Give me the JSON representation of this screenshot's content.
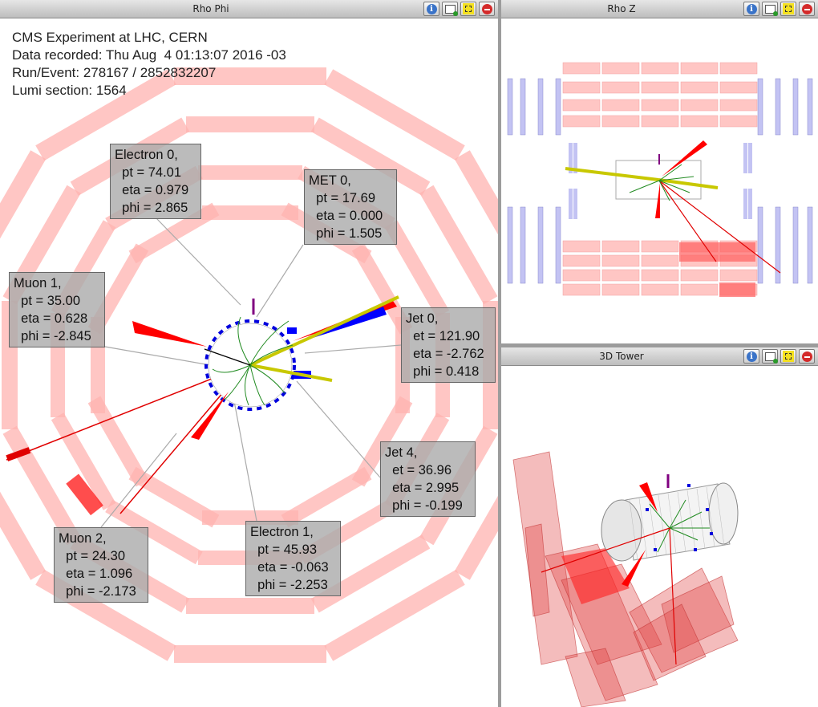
{
  "panels": {
    "rhophi": {
      "title": "Rho Phi"
    },
    "rhoz": {
      "title": "Rho Z"
    },
    "tower": {
      "title": "3D Tower"
    }
  },
  "event_info": {
    "line1": "CMS Experiment at LHC, CERN",
    "line2": "Data recorded: Thu Aug  4 01:13:07 2016 -03",
    "line3": "Run/Event: 278167 / 2852832207",
    "line4": "Lumi section: 1564"
  },
  "labels": [
    {
      "id": "electron0",
      "lines": [
        "Electron 0,",
        "  pt = 74.01",
        "  eta = 0.979",
        "  phi = 2.865"
      ]
    },
    {
      "id": "met0",
      "lines": [
        "MET 0,",
        "  pt = 17.69",
        "  eta = 0.000",
        "  phi = 1.505"
      ]
    },
    {
      "id": "muon1",
      "lines": [
        "Muon 1,",
        "  pt = 35.00",
        "  eta = 0.628",
        "  phi = -2.845"
      ]
    },
    {
      "id": "jet0",
      "lines": [
        "Jet 0,",
        "  et = 121.90",
        "  eta = -2.762",
        "  phi = 0.418"
      ]
    },
    {
      "id": "jet4",
      "lines": [
        "Jet 4,",
        "  et = 36.96",
        "  eta = 2.995",
        "  phi = -0.199"
      ]
    },
    {
      "id": "muon2",
      "lines": [
        "Muon 2,",
        "  pt = 24.30",
        "  eta = 1.096",
        "  phi = -2.173"
      ]
    },
    {
      "id": "electron1",
      "lines": [
        "Electron 1,",
        "  pt = 45.93",
        "  eta = -0.063",
        "  phi = -2.253"
      ]
    }
  ],
  "icons": [
    "info-icon",
    "snapshot-icon",
    "maximize-icon",
    "close-icon"
  ],
  "colors": {
    "muon_chamber": "#ffb3b0",
    "calo_em": "#ff0000",
    "calo_had": "#0000ff",
    "jet": "#c8c800",
    "track": "#228b22",
    "dt_blue": "#b4b4f0",
    "met": "#800080"
  }
}
